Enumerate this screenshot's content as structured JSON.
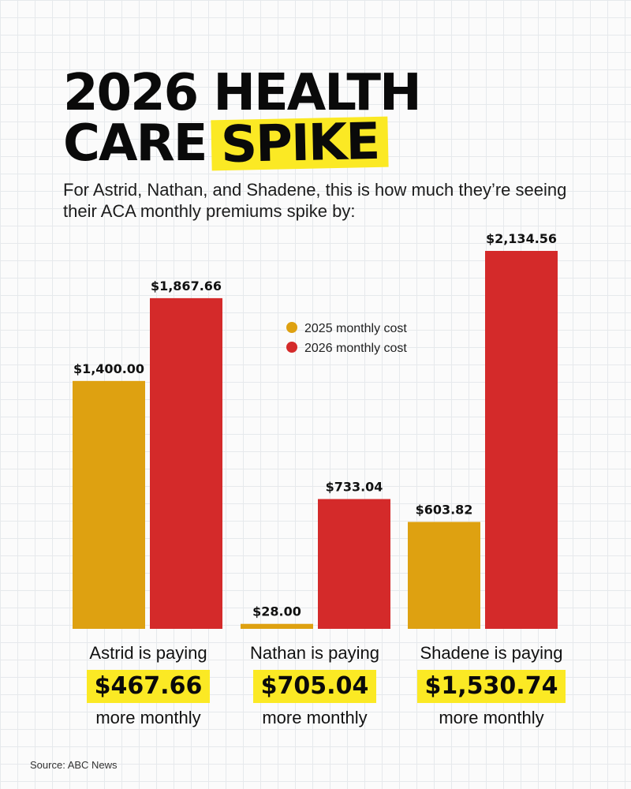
{
  "title": {
    "line1": "2026 HEALTH",
    "line2_plain": "CARE",
    "line2_highlight": "SPIKE"
  },
  "subtitle": "For Astrid, Nathan, and Shadene, this is how much they’re seeing their ACA monthly premiums spike by:",
  "colors": {
    "cost_2025": "#dea111",
    "cost_2026": "#d42a2a",
    "highlight": "#fbe924"
  },
  "chart_data": {
    "type": "bar",
    "title": "2026 HEALTH CARE SPIKE",
    "xlabel": "",
    "ylabel": "",
    "categories": [
      "Astrid",
      "Nathan",
      "Shadene"
    ],
    "series": [
      {
        "name": "2025 monthly cost",
        "values": [
          1400.0,
          28.0,
          603.82
        ],
        "labels": [
          "$1,400.00",
          "$28.00",
          "$603.82"
        ]
      },
      {
        "name": "2026 monthly cost",
        "values": [
          1867.66,
          733.04,
          2134.56
        ],
        "labels": [
          "$1,867.66",
          "$733.04",
          "$2,134.56"
        ]
      }
    ],
    "ylim": [
      0,
      2134.56
    ],
    "legend_position": "top-center",
    "grid": false
  },
  "summaries": [
    {
      "name": "Astrid is paying",
      "amount": "$467.66",
      "suffix": "more monthly"
    },
    {
      "name": "Nathan is paying",
      "amount": "$705.04",
      "suffix": "more monthly"
    },
    {
      "name": "Shadene is paying",
      "amount": "$1,530.74",
      "suffix": "more monthly"
    }
  ],
  "source": "Source: ABC News"
}
